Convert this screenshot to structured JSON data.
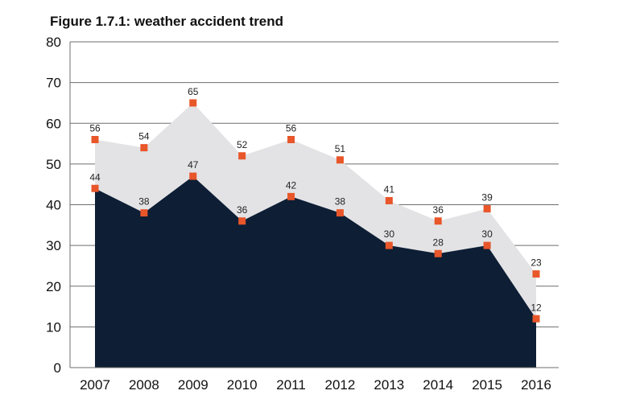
{
  "chart_data": {
    "type": "area",
    "title": "Figure 1.7.1: weather accident trend",
    "xlabel": "",
    "ylabel": "",
    "x": [
      "2007",
      "2008",
      "2009",
      "2010",
      "2011",
      "2012",
      "2013",
      "2014",
      "2015",
      "2016"
    ],
    "series": [
      {
        "values": [
          56,
          54,
          65,
          52,
          56,
          51,
          41,
          36,
          39,
          23
        ],
        "color": "#e3e3e5"
      },
      {
        "values": [
          44,
          38,
          47,
          36,
          42,
          38,
          30,
          28,
          30,
          12
        ],
        "color": "#0d1e35"
      }
    ],
    "marker_color": "#e8562a",
    "ylim": [
      0,
      80
    ],
    "yticks": [
      "0",
      "10",
      "20",
      "30",
      "40",
      "50",
      "60",
      "70",
      "80"
    ],
    "grid": true,
    "legend": "none"
  }
}
